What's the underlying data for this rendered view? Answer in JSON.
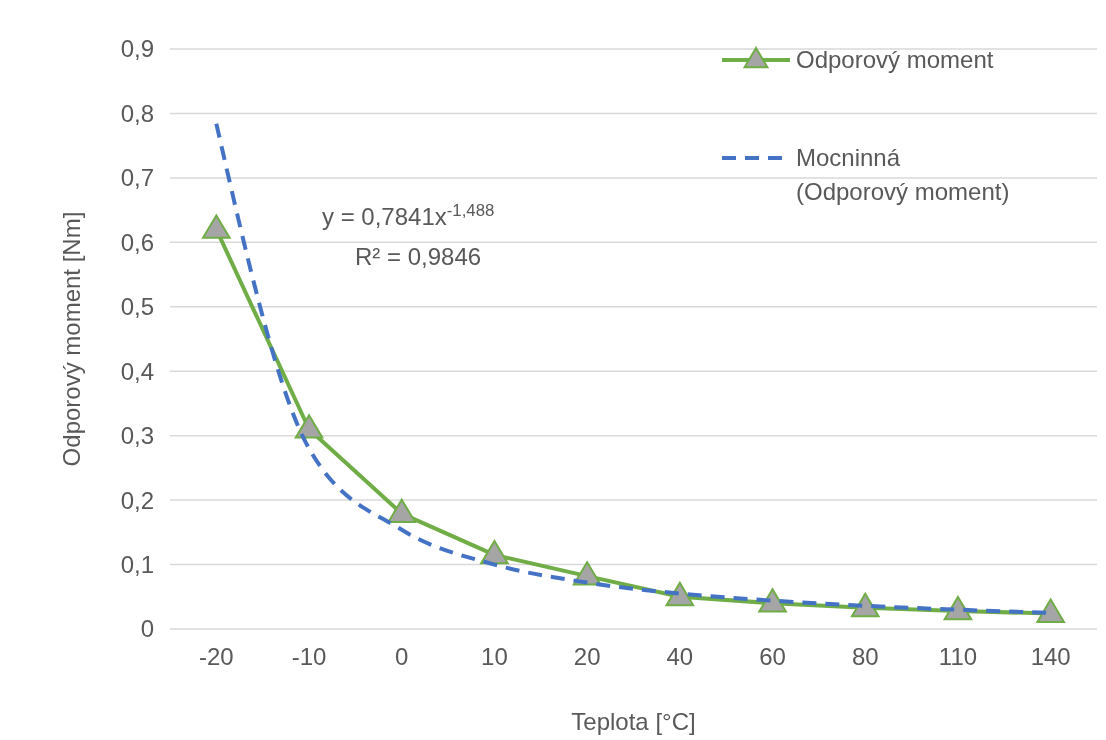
{
  "chart_data": {
    "type": "line",
    "xlabel": "Teplota [°C]",
    "ylabel": "Odporový moment [Nm]",
    "categories": [
      "-20",
      "-10",
      "0",
      "10",
      "20",
      "40",
      "60",
      "80",
      "110",
      "140"
    ],
    "series": [
      {
        "name": "Odporový moment",
        "color": "#70ad47",
        "marker": "triangle",
        "line_style": "solid",
        "values": [
          0.62,
          0.31,
          0.179,
          0.115,
          0.082,
          0.05,
          0.04,
          0.033,
          0.028,
          0.024
        ]
      },
      {
        "name": "Mocninná (Odporový moment)",
        "color": "#4472c4",
        "marker": "none",
        "line_style": "dashed",
        "values": [
          0.784,
          0.28,
          0.154,
          0.1,
          0.072,
          0.055,
          0.044,
          0.036,
          0.03,
          0.025
        ]
      }
    ],
    "ylim": [
      0,
      0.9
    ],
    "yticks": [
      {
        "value": 0,
        "label": "0"
      },
      {
        "value": 0.1,
        "label": "0,1"
      },
      {
        "value": 0.2,
        "label": "0,2"
      },
      {
        "value": 0.3,
        "label": "0,3"
      },
      {
        "value": 0.4,
        "label": "0,4"
      },
      {
        "value": 0.5,
        "label": "0,5"
      },
      {
        "value": 0.6,
        "label": "0,6"
      },
      {
        "value": 0.7,
        "label": "0,7"
      },
      {
        "value": 0.8,
        "label": "0,8"
      },
      {
        "value": 0.9,
        "label": "0,9"
      }
    ],
    "grid": "y",
    "legend": "top right",
    "annotations": [
      "y = 0,7841x$^{-1,488}$",
      "R² = 0,9846"
    ]
  }
}
